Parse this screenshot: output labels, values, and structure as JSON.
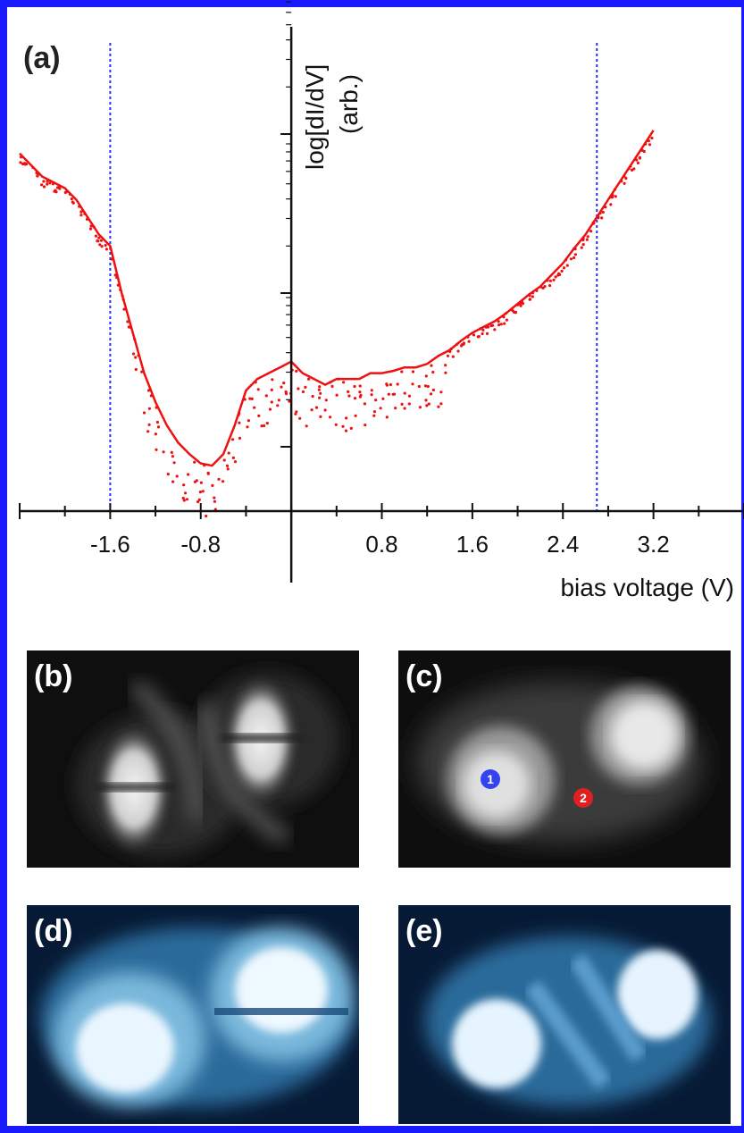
{
  "figure": {
    "panel_labels": [
      "(a)",
      "(b)",
      "(c)",
      "(d)",
      "(e)"
    ],
    "markers": [
      "1",
      "2"
    ],
    "colors": {
      "frame": "#1a1aff",
      "curve": "#ee1111",
      "guide": "#2233ff",
      "marker1": "#3344ee",
      "marker2": "#e02020",
      "grayscale_bg": "#111111",
      "blue_bg": "#0a1a3a"
    }
  },
  "chart_data": {
    "type": "scatter",
    "title": "",
    "xlabel": "bias voltage (V)",
    "ylabel": "log[dI/dV]",
    "ylabel_unit": "(arb.)",
    "x_ticks": [
      -1.6,
      -0.8,
      0.8,
      1.6,
      2.4,
      3.2
    ],
    "x_tick_labels": [
      "-1.6",
      "-0.8",
      "0.8",
      "1.6",
      "2.4",
      "3.2"
    ],
    "xlim": [
      -2.4,
      4.0
    ],
    "ylim": [
      0,
      3.4
    ],
    "y_scale": "log",
    "guide_lines_x": [
      -1.6,
      2.7
    ],
    "series": [
      {
        "x": [
          -2.4,
          -2.3,
          -2.2,
          -2.1,
          -2.0,
          -1.9,
          -1.8,
          -1.7,
          -1.6,
          -1.5,
          -1.4,
          -1.3,
          -1.2,
          -1.1,
          -1.0,
          -0.9,
          -0.8,
          -0.7,
          -0.6,
          -0.5,
          -0.4,
          -0.3,
          -0.2,
          -0.1,
          0.0,
          0.1,
          0.2,
          0.3,
          0.4,
          0.5,
          0.6,
          0.7,
          0.8,
          0.9,
          1.0,
          1.1,
          1.2,
          1.3,
          1.4,
          1.5,
          1.6,
          1.7,
          1.8,
          1.9,
          2.0,
          2.1,
          2.2,
          2.3,
          2.4,
          2.5,
          2.6,
          2.7,
          2.8,
          2.9,
          3.0,
          3.1,
          3.2
        ],
        "y": [
          3.0,
          2.9,
          2.8,
          2.75,
          2.7,
          2.6,
          2.45,
          2.3,
          2.2,
          1.8,
          1.45,
          1.1,
          0.85,
          0.65,
          0.5,
          0.4,
          0.32,
          0.3,
          0.4,
          0.65,
          0.95,
          1.05,
          1.1,
          1.15,
          1.2,
          1.1,
          1.05,
          1.0,
          1.05,
          1.05,
          1.05,
          1.1,
          1.1,
          1.12,
          1.15,
          1.15,
          1.18,
          1.25,
          1.3,
          1.38,
          1.45,
          1.5,
          1.55,
          1.62,
          1.7,
          1.78,
          1.85,
          1.95,
          2.05,
          2.18,
          2.3,
          2.45,
          2.6,
          2.75,
          2.9,
          3.05,
          3.2
        ]
      }
    ]
  }
}
